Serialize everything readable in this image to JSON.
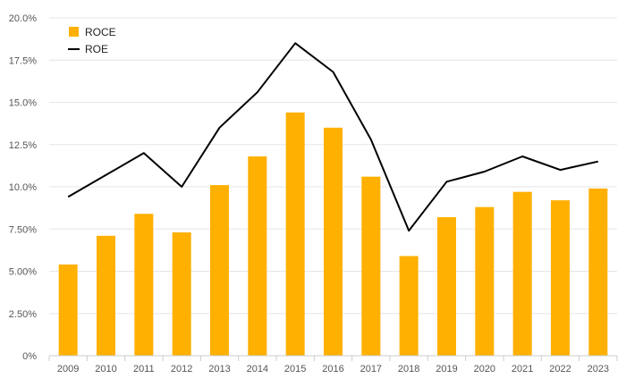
{
  "chart_data": {
    "type": "bar",
    "categories": [
      "2009",
      "2010",
      "2011",
      "2012",
      "2013",
      "2014",
      "2015",
      "2016",
      "2017",
      "2018",
      "2019",
      "2020",
      "2021",
      "2022",
      "2023"
    ],
    "series": [
      {
        "name": "ROCE",
        "type": "bar",
        "color": "#FFB000",
        "values": [
          5.4,
          7.1,
          8.4,
          7.3,
          10.1,
          11.8,
          14.4,
          13.5,
          10.6,
          5.9,
          8.2,
          8.8,
          9.7,
          9.2,
          9.9
        ]
      },
      {
        "name": "ROE",
        "type": "line",
        "color": "#000000",
        "values": [
          9.4,
          10.7,
          12.0,
          10.0,
          13.5,
          15.6,
          18.5,
          16.8,
          12.8,
          7.4,
          10.3,
          10.9,
          11.8,
          11.0,
          11.5
        ]
      }
    ],
    "ylim": [
      0,
      20
    ],
    "yticks": [
      "0%",
      "2.50%",
      "5.00%",
      "7.50%",
      "10.0%",
      "12.5%",
      "15.0%",
      "17.5%",
      "20.0%"
    ],
    "grid": true,
    "legend_position": "top-left"
  }
}
